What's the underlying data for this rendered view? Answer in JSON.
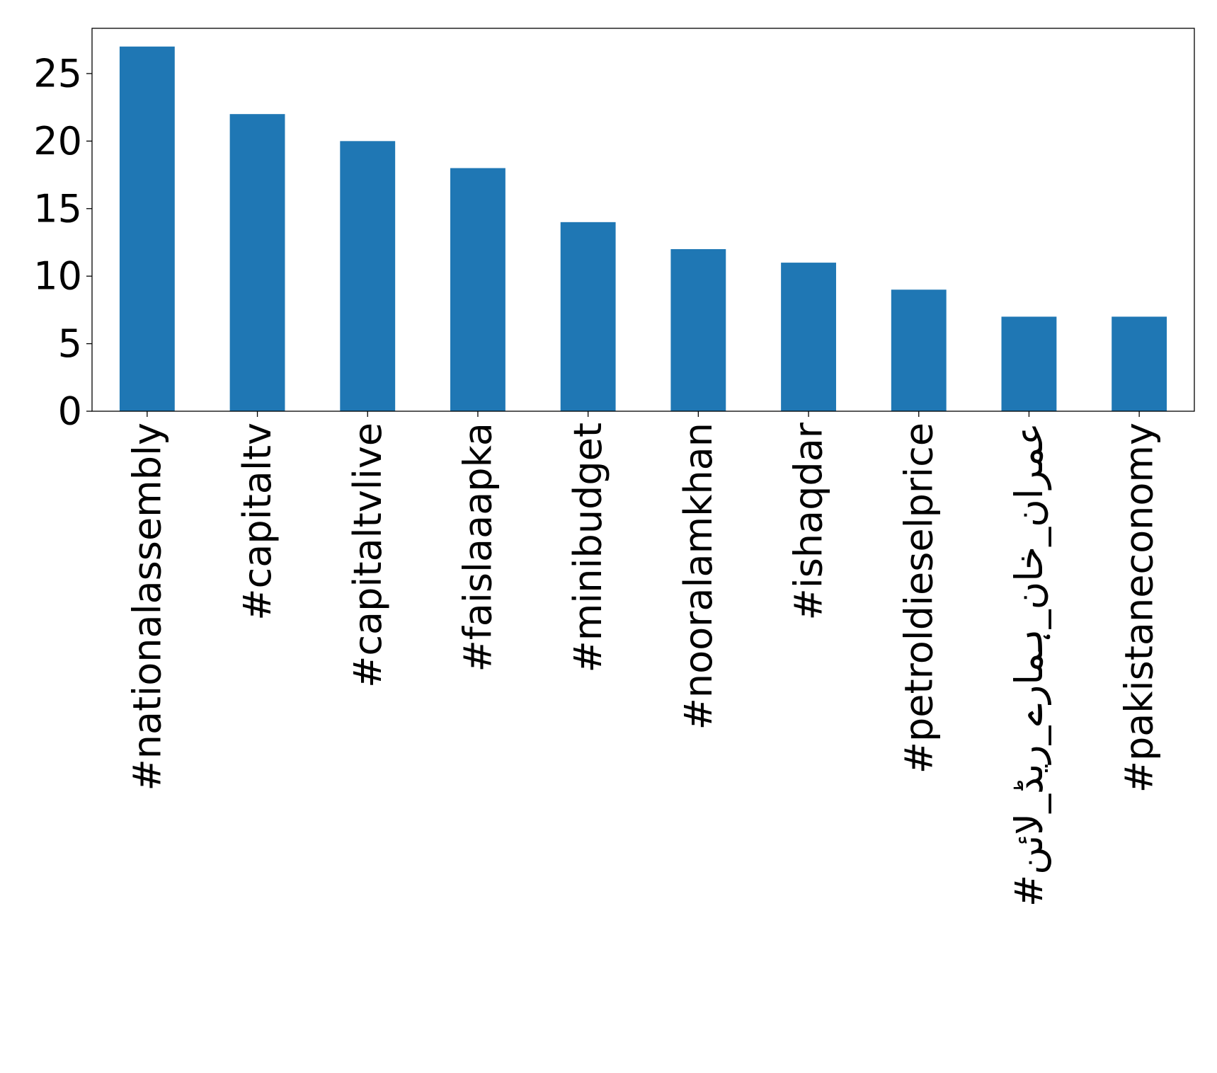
{
  "chart_data": {
    "type": "bar",
    "title": "",
    "xlabel": "",
    "ylabel": "",
    "categories": [
      "#nationalassembly",
      "#capitaltv",
      "#capitaltvlive",
      "#faislaaapka",
      "#minibudget",
      "#nooralamkhan",
      "#ishaqdar",
      "#petroldieselprice",
      "#عمران_خان_ہمارے_ریڈ_لائن",
      "#pakistaneconomy"
    ],
    "values": [
      27,
      22,
      20,
      18,
      14,
      12,
      11,
      9,
      7,
      7
    ],
    "ylim": [
      0,
      28.35
    ],
    "yticks": [
      0,
      5,
      10,
      15,
      20,
      25
    ],
    "grid": false,
    "legend": "none",
    "bar_color": "#1f77b4"
  }
}
